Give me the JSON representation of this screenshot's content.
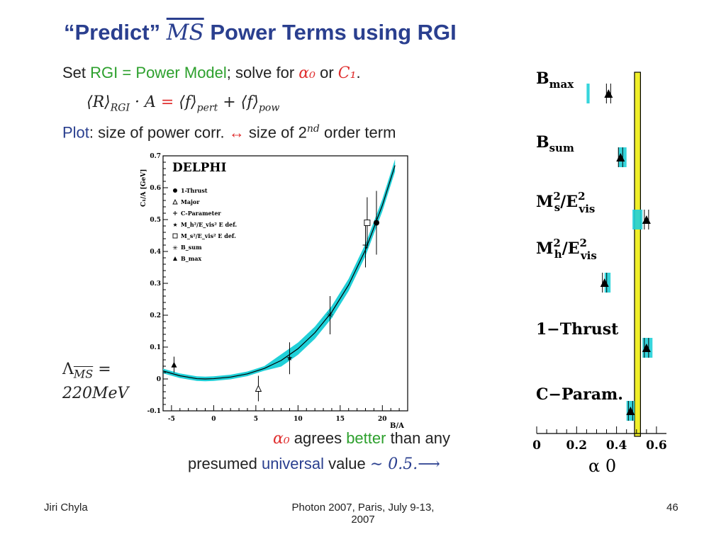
{
  "slide": {
    "title_prefix": "“Predict”",
    "title_ms": "MS",
    "title_suffix": "Power Terms using RGI",
    "line1": {
      "set": "Set",
      "rgi": "RGI",
      "eq": "=",
      "power_model": "Power Model",
      "solve": "; solve for",
      "alpha0": "α₀",
      "or": "or",
      "c1": "C₁",
      "period": "."
    },
    "line2": {
      "lhs": "⟨R⟩",
      "lhs_sub": "RGI",
      "dot_a": " · A ",
      "eq": "=",
      "f1": " ⟨f⟩",
      "f1_sub": "pert",
      "plus": " + ⟨f⟩",
      "f2_sub": "pow"
    },
    "line3": {
      "plot": "Plot",
      "text1": ": size of power corr.",
      "arrow": "↔",
      "text2": "size of 2",
      "sup": "nd",
      "text3": " order term"
    },
    "lambda": {
      "symbol": "Λ",
      "ms": "MS",
      "eq": " =",
      "value": "220MeV"
    },
    "agrees": {
      "alpha0": "α₀",
      "text1": " agrees ",
      "better": "better",
      "text2": " than any"
    },
    "presumed": {
      "text1": "presumed ",
      "universal": "universal",
      "text2": " value ",
      "approx": "∼ 0.5.⟶"
    }
  },
  "footer": {
    "author": "Jiri Chyla",
    "conference_line1": "Photon 2007, Paris, July 9-13,",
    "conference_line2": "2007",
    "page": "46"
  },
  "colors": {
    "title_blue": "#2a3f8f",
    "green": "#2da02d",
    "red": "#e03030",
    "band_cyan": "#20d0d8",
    "yellow_band": "#f0ef2a"
  },
  "chart_data": [
    {
      "type": "scatter",
      "experiment_label": "DELPHI",
      "xlabel": "B/A",
      "ylabel": "C₁/A [GeV]",
      "xlim": [
        -6,
        23
      ],
      "ylim": [
        -0.1,
        0.7
      ],
      "xticks": [
        "-5",
        "0",
        "5",
        "10",
        "15",
        "20"
      ],
      "yticks": [
        "-0.1",
        "0",
        "0.1",
        "0.2",
        "0.3",
        "0.4",
        "0.5",
        "0.6",
        "0.7"
      ],
      "legend": [
        "1-Thrust",
        "Major",
        "C-Parameter",
        "M_h²/E_vis² E def.",
        "M_s²/E_vis² E def.",
        "B_sum",
        "B_max"
      ],
      "legend_sub": {
        "mh": "h",
        "ms": "s",
        "evis": "vis",
        "sq": "2",
        "edef": " E def.",
        "bsum": "sum",
        "bmax": "max",
        "m": "M",
        "slash_e": "/E"
      },
      "series": [
        {
          "name": "1-Thrust",
          "marker": "circle",
          "x": 19.3,
          "y": 0.49,
          "err": 0.1
        },
        {
          "name": "Major",
          "marker": "open-triangle",
          "x": 5.3,
          "y": -0.03,
          "err": 0.04
        },
        {
          "name": "C-Parameter",
          "marker": "plus",
          "x": 18.0,
          "y": 0.42,
          "err": 0.07
        },
        {
          "name": "M_h²/E_vis² E def.",
          "marker": "star",
          "x": 9.0,
          "y": 0.065,
          "err": 0.05
        },
        {
          "name": "M_s²/E_vis² E def.",
          "marker": "open-square",
          "x": 18.2,
          "y": 0.49,
          "err": 0.08
        },
        {
          "name": "B_sum",
          "marker": "asterisk",
          "x": 13.8,
          "y": 0.2,
          "err": 0.06
        },
        {
          "name": "B_max",
          "marker": "filled-triangle",
          "x": -4.7,
          "y": 0.045,
          "err": 0.025
        }
      ],
      "curve": {
        "x": [
          -6,
          -4,
          -2,
          -1,
          0,
          2,
          4,
          6,
          8,
          10,
          12,
          14,
          16,
          18,
          20,
          21.5
        ],
        "y": [
          0.025,
          0.01,
          0.001,
          0.0,
          0.001,
          0.006,
          0.016,
          0.033,
          0.058,
          0.095,
          0.145,
          0.21,
          0.295,
          0.405,
          0.545,
          0.67
        ]
      },
      "band_halfwidth": 0.012
    },
    {
      "type": "scatter",
      "xlabel": "α 0",
      "xlim": [
        0,
        0.65
      ],
      "xticks": [
        "0",
        "0.2",
        "0.4",
        "0.6"
      ],
      "categories": [
        {
          "label_main": "B",
          "label_sub": "max",
          "value": 0.36,
          "band": [
            0.25,
            0.265
          ]
        },
        {
          "label_main": "B",
          "label_sub": "sum",
          "value": 0.42,
          "band": [
            0.41,
            0.45
          ]
        },
        {
          "label_main": "M",
          "label_sup": "2",
          "label_sub": "s",
          "label_rest": "/E",
          "label_rest_sup": "2",
          "label_rest_sub": "vis",
          "value": 0.55,
          "band": [
            0.48,
            0.53
          ]
        },
        {
          "label_main": "M",
          "label_sup": "2",
          "label_sub": "h",
          "label_rest": "/E",
          "label_rest_sup": "2",
          "label_rest_sub": "vis",
          "value": 0.34,
          "band": [
            0.34,
            0.37
          ]
        },
        {
          "label_main": "1−Thrust",
          "value": 0.55,
          "band": [
            0.53,
            0.58
          ]
        },
        {
          "label_main": "C−Param.",
          "value": 0.47,
          "band": [
            0.45,
            0.49
          ]
        }
      ],
      "universal_band": [
        0.49,
        0.52
      ]
    }
  ]
}
